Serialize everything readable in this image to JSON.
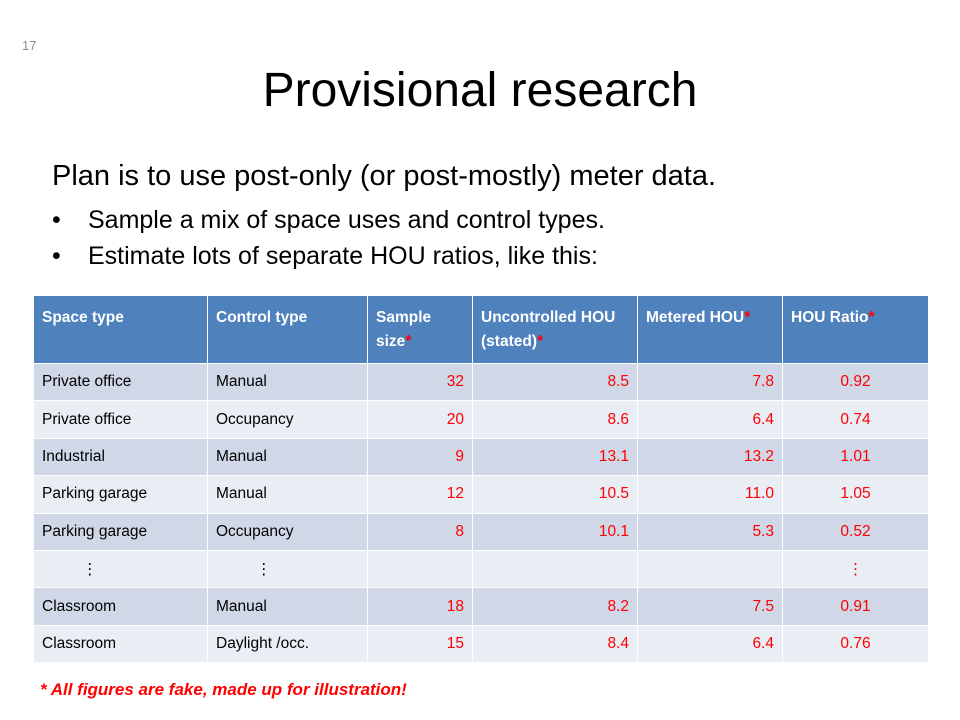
{
  "slide": {
    "number": "17",
    "title": "Provisional research",
    "lead": "Plan is to use post-only (or post-mostly) meter data.",
    "bullets": [
      "Sample a mix of space uses and control types.",
      "Estimate lots of separate HOU ratios, like this:"
    ]
  },
  "table": {
    "headers": [
      {
        "text": "Space type",
        "star": ""
      },
      {
        "text": "Control type",
        "star": ""
      },
      {
        "text": "Sample size",
        "star": "*"
      },
      {
        "text": "Uncontrolled HOU (stated)",
        "star": "*"
      },
      {
        "text": "Metered HOU",
        "star": "*"
      },
      {
        "text": "HOU Ratio",
        "star": "*"
      }
    ],
    "rows": [
      [
        "Private office",
        "Manual",
        "32",
        "8.5",
        "7.8",
        "0.92"
      ],
      [
        "Private office",
        "Occupancy",
        "20",
        "8.6",
        "6.4",
        "0.74"
      ],
      [
        "Industrial",
        "Manual",
        "9",
        "13.1",
        "13.2",
        "1.01"
      ],
      [
        "Parking garage",
        "Manual",
        "12",
        "10.5",
        "11.0",
        "1.05"
      ],
      [
        "Parking garage",
        "Occupancy",
        "8",
        "10.1",
        "5.3",
        "0.52"
      ],
      [
        "⋮",
        "⋮",
        "",
        "",
        "",
        "⋮"
      ],
      [
        "Classroom",
        "Manual",
        "18",
        "8.2",
        "7.5",
        "0.91"
      ],
      [
        "Classroom",
        "Daylight /occ.",
        "15",
        "8.4",
        "6.4",
        "0.76"
      ]
    ]
  },
  "footnote": "* All figures are fake, made up for illustration!",
  "colors": {
    "header_bg": "#4f81bd",
    "row_odd": "#d0d8e8",
    "row_even": "#e9edf4",
    "highlight": "#ff0000"
  }
}
